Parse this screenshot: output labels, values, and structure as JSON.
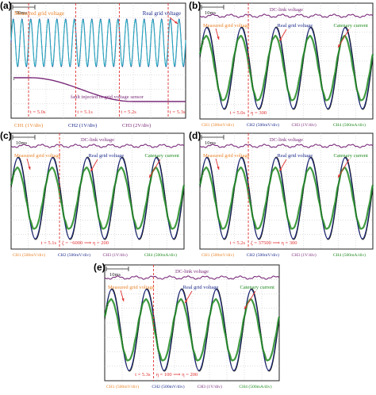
{
  "colors": {
    "measured": "#e8832a",
    "real": "#1c2a8a",
    "fault": "#7a2b7a",
    "catenary": "#1f8a1f",
    "dclink": "#7a2b7a",
    "marker": "#e03030",
    "cyan": "#2ab3c4",
    "grid": "#bfbfbf",
    "black": "#111111"
  },
  "chart_data": [
    {
      "id": "a",
      "panel_label": "(a)",
      "type": "line",
      "time_scale": "50ms",
      "annotations": {
        "measured": "Measured grid voltage",
        "real": "Real grid voltage",
        "fault": "fault injected in grid voltage sensor"
      },
      "markers": [
        "t = 5.0s",
        "t = 5.1s",
        "t = 5.2s",
        "t = 5.3s"
      ],
      "channels": [
        "CH1 (1V/div)",
        "CH2 (1V/div)",
        "CH3 (2V/div)"
      ],
      "series": [
        {
          "key": "measured",
          "cycles": 20,
          "amplitude": 1
        },
        {
          "key": "real",
          "cycles": 20,
          "amplitude": 1
        },
        {
          "key": "fault",
          "start": 0.11,
          "ramp_end": 0.7,
          "end_level": 1
        }
      ]
    },
    {
      "id": "b",
      "panel_label": "(b)",
      "type": "line",
      "time_scale": "10ms",
      "annotations": {
        "dclink": "DC-link voltage",
        "measured": "Measured grid voltage",
        "real": "Real grid voltage",
        "catenary": "Catenary current"
      },
      "markers": [
        "t = 5.0s"
      ],
      "marker_note": "η = 300",
      "channels": [
        "CH1 (500mV/div)",
        "CH2 (500mV/div)",
        "CH3 (1V/div)",
        "CH4 (500mA/div)"
      ],
      "series": [
        {
          "key": "measured",
          "cycles": 5,
          "amplitude": 0.98
        },
        {
          "key": "real",
          "cycles": 5,
          "amplitude": 1
        },
        {
          "key": "catenary",
          "cycles": 5,
          "amplitude": 0.78
        }
      ]
    },
    {
      "id": "c",
      "panel_label": "(c)",
      "type": "line",
      "time_scale": "10ms",
      "annotations": {
        "dclink": "DC-link voltage",
        "measured": "Measured grid voltage",
        "real": "Real grid voltage",
        "catenary": "Catenary current"
      },
      "markers": [
        "t = 5.1s"
      ],
      "marker_note": "ζ = −6000 ⟹ η = 200",
      "channels": [
        "CH1 (500mV/div)",
        "CH2 (500mV/div)",
        "CH3 (1V/div)",
        "CH4 (500mA/div)"
      ],
      "series": [
        {
          "key": "measured",
          "cycles": 5,
          "amplitude": 0.98
        },
        {
          "key": "real",
          "cycles": 5,
          "amplitude": 1
        },
        {
          "key": "catenary",
          "cycles": 5,
          "amplitude": 0.74
        }
      ]
    },
    {
      "id": "d",
      "panel_label": "(d)",
      "type": "line",
      "time_scale": "10ms",
      "annotations": {
        "dclink": "DC-link voltage",
        "measured": "Measured grid voltage",
        "real": "Real grid voltage",
        "catenary": "Catenary current"
      },
      "markers": [
        "t = 5.2s"
      ],
      "marker_note": "ζ = 37500 ⟹ η = 300",
      "channels": [
        "CH1 (500mV/div)",
        "CH2 (500mV/div)",
        "CH3 (1V/div)",
        "CH4 (500mA/div)"
      ],
      "series": [
        {
          "key": "measured",
          "cycles": 5,
          "amplitude": 0.98
        },
        {
          "key": "real",
          "cycles": 5,
          "amplitude": 1
        },
        {
          "key": "catenary",
          "cycles": 5,
          "amplitude": 0.74
        }
      ]
    },
    {
      "id": "e",
      "panel_label": "(e)",
      "type": "line",
      "time_scale": "10ms",
      "annotations": {
        "dclink": "DC-link voltage",
        "measured": "Measured grid voltage",
        "real": "Real grid voltage",
        "catenary": "Catenary current"
      },
      "markers": [
        "t = 5.3s"
      ],
      "marker_note": "η = 100 ⟹ η = 200",
      "channels": [
        "CH1 (500mV/div)",
        "CH2 (500mV/div)",
        "CH3 (1V/div)",
        "CH4 (500mA/div)"
      ],
      "series": [
        {
          "key": "measured",
          "cycles": 5,
          "amplitude": 0.98
        },
        {
          "key": "real",
          "cycles": 5,
          "amplitude": 1
        },
        {
          "key": "catenary",
          "cycles": 5,
          "amplitude": 0.74
        }
      ]
    }
  ]
}
